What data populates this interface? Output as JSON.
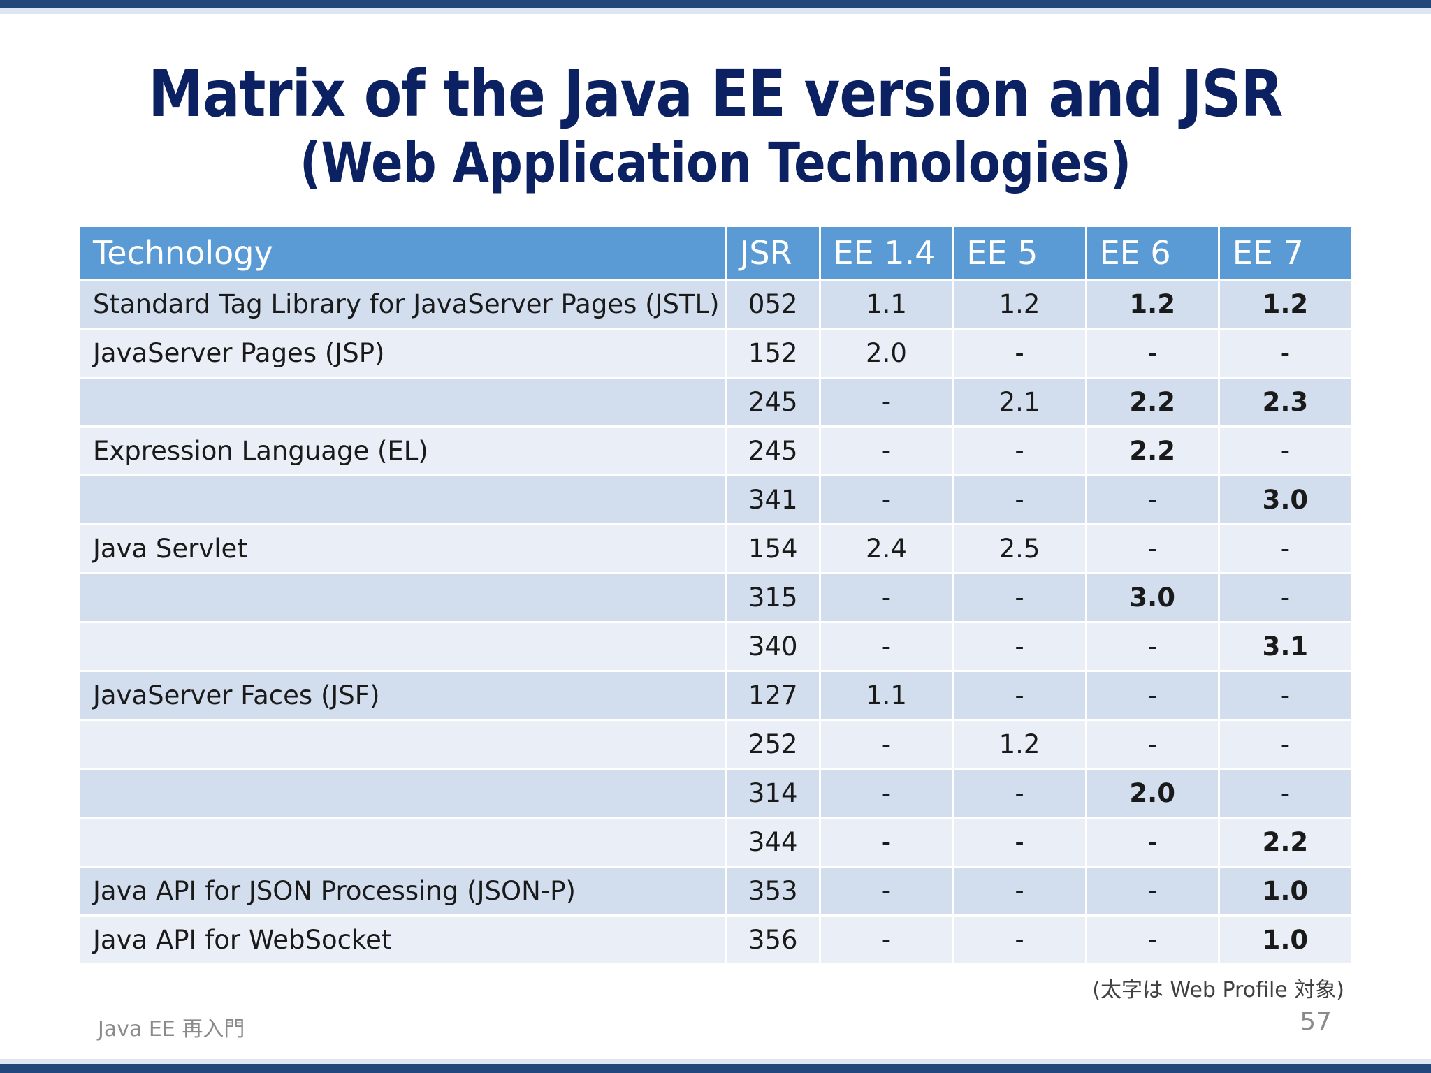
{
  "slide": {
    "title_line1": "Matrix of the Java EE version and JSR",
    "title_line2": "(Web Application Technologies)",
    "note": "(太字は Web Profile 対象)",
    "footer": "Java EE 再入門",
    "page_number": "57",
    "colors": {
      "title": "#0c2161",
      "header_bg": "#5b9bd5",
      "row_dark": "#d2deee",
      "row_light": "#eaeff7",
      "bar": "#22477a"
    }
  },
  "table": {
    "headers": [
      "Technology",
      "JSR",
      "EE 1.4",
      "EE 5",
      "EE 6",
      "EE 7"
    ],
    "rows": [
      {
        "technology": "Standard Tag Library for JavaServer Pages (JSTL)",
        "jsr": "052",
        "ee14": "1.1",
        "ee5": "1.2",
        "ee6": "1.2",
        "ee7": "1.2",
        "bold": [
          false,
          false,
          true,
          true
        ]
      },
      {
        "technology": "JavaServer Pages (JSP)",
        "jsr": "152",
        "ee14": "2.0",
        "ee5": "-",
        "ee6": "-",
        "ee7": "-",
        "bold": [
          false,
          false,
          false,
          false
        ]
      },
      {
        "technology": "",
        "jsr": "245",
        "ee14": "-",
        "ee5": "2.1",
        "ee6": "2.2",
        "ee7": "2.3",
        "bold": [
          false,
          false,
          true,
          true
        ]
      },
      {
        "technology": "Expression Language (EL)",
        "jsr": "245",
        "ee14": "-",
        "ee5": "-",
        "ee6": "2.2",
        "ee7": "-",
        "bold": [
          false,
          false,
          true,
          false
        ]
      },
      {
        "technology": "",
        "jsr": "341",
        "ee14": "-",
        "ee5": "-",
        "ee6": "-",
        "ee7": "3.0",
        "bold": [
          false,
          false,
          false,
          true
        ]
      },
      {
        "technology": "Java Servlet",
        "jsr": "154",
        "ee14": "2.4",
        "ee5": "2.5",
        "ee6": "-",
        "ee7": "-",
        "bold": [
          false,
          false,
          false,
          false
        ]
      },
      {
        "technology": "",
        "jsr": "315",
        "ee14": "-",
        "ee5": "-",
        "ee6": "3.0",
        "ee7": "-",
        "bold": [
          false,
          false,
          true,
          false
        ]
      },
      {
        "technology": "",
        "jsr": "340",
        "ee14": "-",
        "ee5": "-",
        "ee6": "-",
        "ee7": "3.1",
        "bold": [
          false,
          false,
          false,
          true
        ]
      },
      {
        "technology": "JavaServer Faces (JSF)",
        "jsr": "127",
        "ee14": "1.1",
        "ee5": "-",
        "ee6": "-",
        "ee7": "-",
        "bold": [
          false,
          false,
          false,
          false
        ]
      },
      {
        "technology": "",
        "jsr": "252",
        "ee14": "-",
        "ee5": "1.2",
        "ee6": "-",
        "ee7": "-",
        "bold": [
          false,
          false,
          false,
          false
        ]
      },
      {
        "technology": "",
        "jsr": "314",
        "ee14": "-",
        "ee5": "-",
        "ee6": "2.0",
        "ee7": "-",
        "bold": [
          false,
          false,
          true,
          false
        ]
      },
      {
        "technology": "",
        "jsr": "344",
        "ee14": "-",
        "ee5": "-",
        "ee6": "-",
        "ee7": "2.2",
        "bold": [
          false,
          false,
          false,
          true
        ]
      },
      {
        "technology": "Java API for JSON Processing (JSON-P)",
        "jsr": "353",
        "ee14": "-",
        "ee5": "-",
        "ee6": "-",
        "ee7": "1.0",
        "bold": [
          false,
          false,
          false,
          true
        ]
      },
      {
        "technology": "Java API for WebSocket",
        "jsr": "356",
        "ee14": "-",
        "ee5": "-",
        "ee6": "-",
        "ee7": "1.0",
        "bold": [
          false,
          false,
          false,
          true
        ]
      }
    ]
  }
}
